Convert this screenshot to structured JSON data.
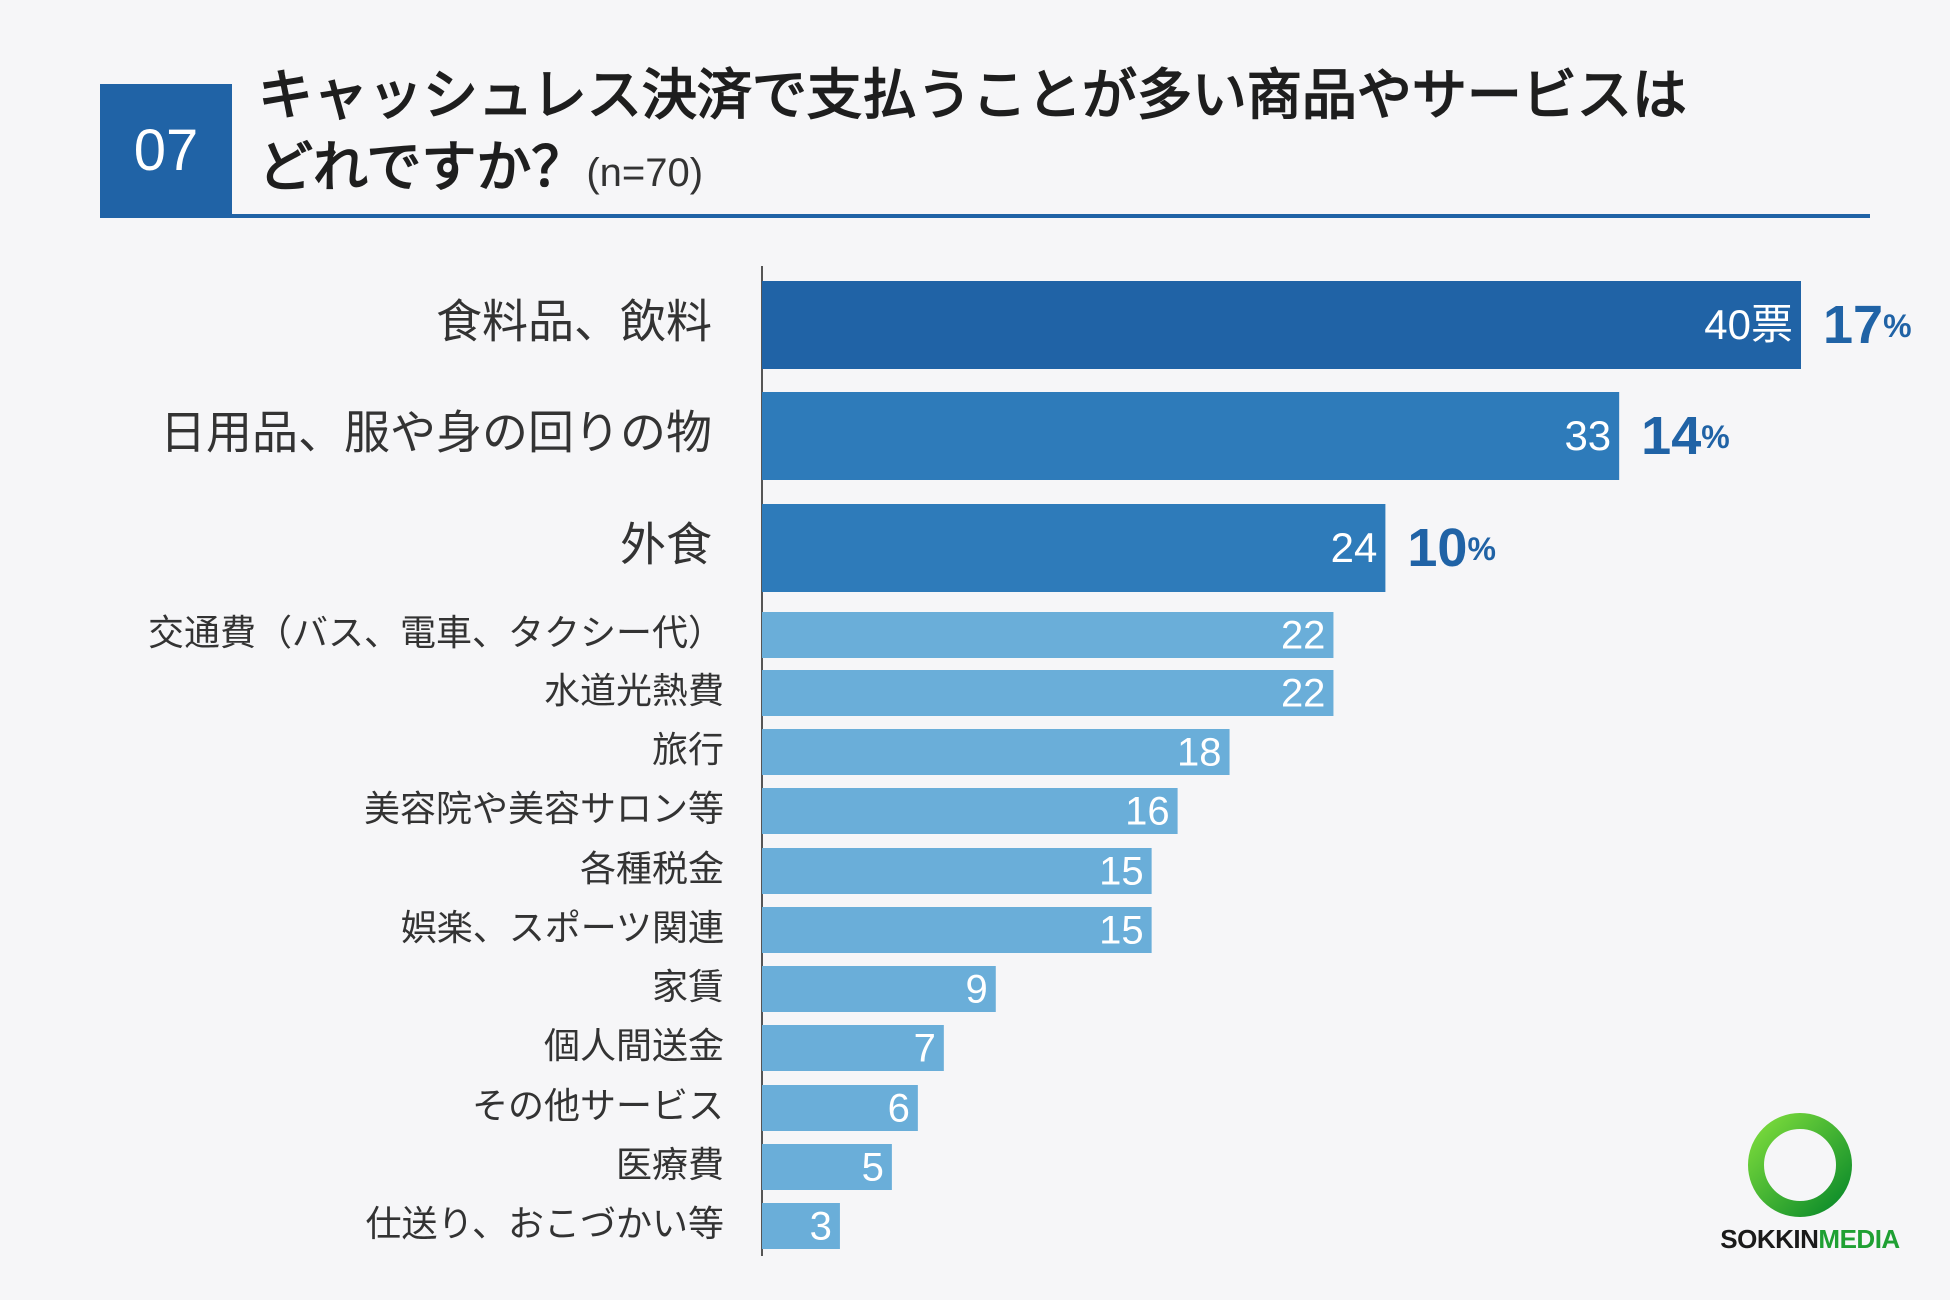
{
  "header": {
    "number": "07",
    "title_line1": "キャッシュレス決済で支払うことが多い商品やサービスは",
    "title_line2": "どれですか？",
    "sample_size": "(n=70)"
  },
  "chart_data": {
    "type": "bar",
    "orientation": "horizontal",
    "title": "キャッシュレス決済で支払うことが多い商品やサービスはどれですか？(n=70)",
    "categories": [
      "食料品、飲料",
      "日用品、服や身の回りの物",
      "外食",
      "交通費（バス、電車、タクシー代）",
      "水道光熱費",
      "旅行",
      "美容院や美容サロン等",
      "各種税金",
      "娯楽、スポーツ関連",
      "家賃",
      "個人間送金",
      "その他サービス",
      "医療費",
      "仕送り、おこづかい等"
    ],
    "values": [
      40,
      33,
      24,
      22,
      22,
      18,
      16,
      15,
      15,
      9,
      7,
      6,
      5,
      3
    ],
    "value_labels": [
      "40票",
      "33",
      "24",
      "22",
      "22",
      "18",
      "16",
      "15",
      "15",
      "9",
      "7",
      "6",
      "5",
      "3"
    ],
    "percent_labels": [
      {
        "num": "17",
        "unit": "%"
      },
      {
        "num": "14",
        "unit": "%"
      },
      {
        "num": "10",
        "unit": "%"
      }
    ],
    "highlight_count": 3,
    "colors": {
      "top": "#2063a6",
      "mid": "#2e7bba",
      "rest": "#6aaed9",
      "axis": "#555555"
    },
    "xlim": [
      0,
      40
    ]
  },
  "logo": {
    "part1": "SOKKIN",
    "part2": "MEDIA",
    "ring_color": "#2eb82e"
  }
}
